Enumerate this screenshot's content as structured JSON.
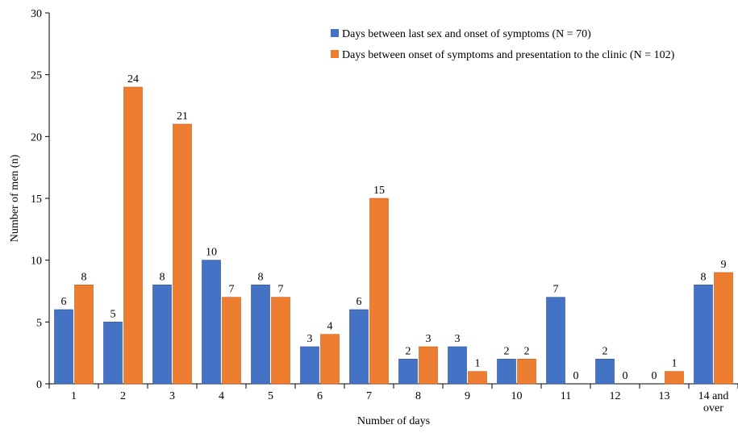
{
  "chart_data": {
    "type": "bar",
    "categories": [
      "1",
      "2",
      "3",
      "4",
      "5",
      "6",
      "7",
      "8",
      "9",
      "10",
      "11",
      "12",
      "13",
      "14 and over"
    ],
    "series": [
      {
        "name": "Days between last sex and onset of symptoms (N = 70)",
        "values": [
          6,
          5,
          8,
          10,
          8,
          3,
          6,
          2,
          3,
          2,
          7,
          2,
          0,
          8
        ],
        "color": "#4472C4"
      },
      {
        "name": "Days between onset of symptoms and presentation to the clinic (N = 102)",
        "values": [
          8,
          24,
          21,
          7,
          7,
          4,
          15,
          3,
          1,
          2,
          0,
          0,
          1,
          9
        ],
        "color": "#ED7D31"
      }
    ],
    "title": "",
    "xlabel": "Number of days",
    "ylabel": "Number of men (n)",
    "ylim": [
      0,
      30
    ],
    "yticks": [
      0,
      5,
      10,
      15,
      20,
      25,
      30
    ],
    "grid": false,
    "legend": "top-right",
    "data_labels": true
  }
}
